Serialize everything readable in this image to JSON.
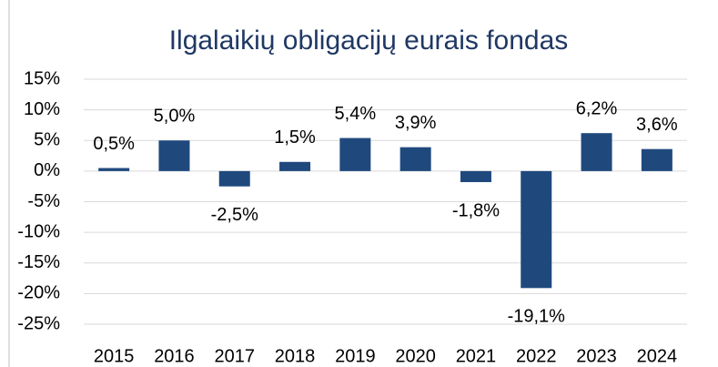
{
  "chart_data": {
    "type": "bar",
    "title": "Ilgalaikių obligacijų eurais fondas",
    "categories": [
      "2015",
      "2016",
      "2017",
      "2018",
      "2019",
      "2020",
      "2021",
      "2022",
      "2023",
      "2024"
    ],
    "values": [
      0.5,
      5.0,
      -2.5,
      1.5,
      5.4,
      3.9,
      -1.8,
      -19.1,
      6.2,
      3.6
    ],
    "value_labels": [
      "0,5%",
      "5,0%",
      "-2,5%",
      "1,5%",
      "5,4%",
      "3,9%",
      "-1,8%",
      "-19,1%",
      "6,2%",
      "3,6%"
    ],
    "color": "#1f497d",
    "ylim": [
      -25,
      15
    ],
    "yticks": [
      {
        "value": 15,
        "label": "15%"
      },
      {
        "value": 10,
        "label": "10%"
      },
      {
        "value": 5,
        "label": "5%"
      },
      {
        "value": 0,
        "label": "0%"
      },
      {
        "value": -5,
        "label": "-5%"
      },
      {
        "value": -10,
        "label": "-10%"
      },
      {
        "value": -15,
        "label": "-15%"
      },
      {
        "value": -20,
        "label": "-20%"
      },
      {
        "value": -25,
        "label": "-25%"
      }
    ],
    "grid": true
  }
}
